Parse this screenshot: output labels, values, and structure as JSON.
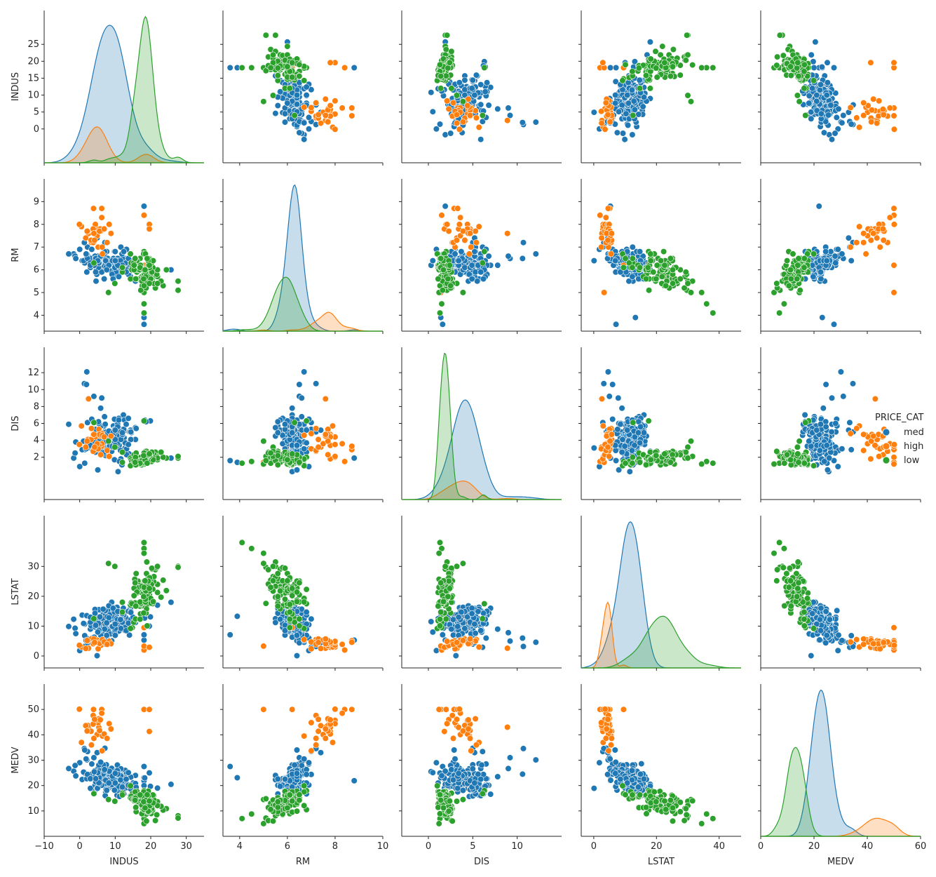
{
  "chart_data": {
    "type": "scatter",
    "kind": "pairplot",
    "variables": [
      "INDUS",
      "RM",
      "DIS",
      "LSTAT",
      "MEDV"
    ],
    "hue": "PRICE_CAT",
    "diagonal_type": "kde",
    "legend": {
      "title": "PRICE_CAT",
      "position": "right",
      "entries": [
        {
          "label": "med",
          "color": "#1f77b4"
        },
        {
          "label": "high",
          "color": "#ff7f0e"
        },
        {
          "label": "low",
          "color": "#2ca02c"
        }
      ]
    },
    "axes": {
      "INDUS": {
        "lim": [
          -10,
          35
        ],
        "ticks": [
          -10,
          0,
          10,
          20,
          30
        ],
        "diag_ticks": [
          0,
          5,
          10,
          15,
          20,
          25
        ]
      },
      "RM": {
        "lim": [
          3.3,
          10
        ],
        "ticks": [
          4,
          6,
          8,
          10
        ],
        "diag_ticks": [
          4,
          5,
          6,
          7,
          8,
          9
        ]
      },
      "DIS": {
        "lim": [
          -3,
          15
        ],
        "ticks": [
          0,
          5,
          10
        ],
        "diag_ticks": [
          2,
          4,
          6,
          8,
          10,
          12
        ]
      },
      "LSTAT": {
        "lim": [
          -4,
          47
        ],
        "ticks": [
          0,
          20,
          40
        ],
        "diag_ticks": [
          0,
          10,
          20,
          30
        ]
      },
      "MEDV": {
        "lim": [
          0,
          60
        ],
        "ticks": [
          0,
          20,
          40,
          60
        ],
        "diag_ticks": [
          10,
          20,
          30,
          40,
          50
        ]
      }
    },
    "series": [
      {
        "name": "med",
        "color": "#1f77b4",
        "cluster": {
          "INDUS": [
            8.5,
            5.5
          ],
          "RM": [
            6.3,
            0.45
          ],
          "DIS": [
            4.2,
            1.9
          ],
          "LSTAT": [
            11.5,
            4.5
          ],
          "MEDV": [
            22.5,
            4.5
          ]
        },
        "points": [
          {
            "INDUS": 2.3,
            "RM": 6.6,
            "DIS": 4.1,
            "LSTAT": 5.0,
            "MEDV": 24.0
          },
          {
            "INDUS": 7.1,
            "RM": 6.4,
            "DIS": 5.0,
            "LSTAT": 9.1,
            "MEDV": 21.6
          },
          {
            "INDUS": 7.1,
            "RM": 7.2,
            "DIS": 5.0,
            "LSTAT": 4.0,
            "MEDV": 34.7
          },
          {
            "INDUS": 2.2,
            "RM": 7.0,
            "DIS": 6.1,
            "LSTAT": 2.9,
            "MEDV": 33.4
          },
          {
            "INDUS": 18.1,
            "RM": 8.8,
            "DIS": 1.9,
            "LSTAT": 5.3,
            "MEDV": 21.9
          },
          {
            "INDUS": 18.1,
            "RM": 3.6,
            "DIS": 1.6,
            "LSTAT": 7.1,
            "MEDV": 27.5
          },
          {
            "INDUS": 18.1,
            "RM": 3.9,
            "DIS": 1.4,
            "LSTAT": 13.3,
            "MEDV": 23.1
          },
          {
            "INDUS": 2.0,
            "RM": 6.7,
            "DIS": 12.1,
            "LSTAT": 4.6,
            "MEDV": 30.1
          },
          {
            "INDUS": 1.3,
            "RM": 7.2,
            "DIS": 10.7,
            "LSTAT": 3.2,
            "MEDV": 34.6
          },
          {
            "INDUS": 4.0,
            "RM": 6.5,
            "DIS": 9.2,
            "LSTAT": 5.0,
            "MEDV": 31.0
          },
          {
            "INDUS": 6.2,
            "RM": 6.6,
            "DIS": 9.0,
            "LSTAT": 7.8,
            "MEDV": 26.7
          },
          {
            "INDUS": 8.1,
            "RM": 6.0,
            "DIS": 4.4,
            "LSTAT": 14.8,
            "MEDV": 18.9
          },
          {
            "INDUS": 9.9,
            "RM": 5.9,
            "DIS": 3.5,
            "LSTAT": 16.2,
            "MEDV": 19.4
          },
          {
            "INDUS": 10.6,
            "RM": 6.2,
            "DIS": 3.9,
            "LSTAT": 11.3,
            "MEDV": 22.0
          },
          {
            "INDUS": 13.9,
            "RM": 6.1,
            "DIS": 2.4,
            "LSTAT": 12.0,
            "MEDV": 19.6
          },
          {
            "INDUS": 15.0,
            "RM": 6.2,
            "DIS": 2.1,
            "LSTAT": 13.0,
            "MEDV": 21.0
          },
          {
            "INDUS": 21.9,
            "RM": 6.0,
            "DIS": 1.8,
            "LSTAT": 17.0,
            "MEDV": 19.0
          },
          {
            "INDUS": 25.7,
            "RM": 6.0,
            "DIS": 1.9,
            "LSTAT": 18.0,
            "MEDV": 20.5
          },
          {
            "INDUS": 19.6,
            "RM": 6.4,
            "DIS": 2.1,
            "LSTAT": 10.0,
            "MEDV": 25.0
          },
          {
            "INDUS": 3.4,
            "RM": 6.9,
            "DIS": 6.5,
            "LSTAT": 6.0,
            "MEDV": 28.5
          },
          {
            "INDUS": 5.9,
            "RM": 6.2,
            "DIS": 7.8,
            "LSTAT": 9.0,
            "MEDV": 23.5
          },
          {
            "INDUS": 12.8,
            "RM": 6.5,
            "DIS": 3.1,
            "LSTAT": 8.5,
            "MEDV": 26.0
          },
          {
            "INDUS": 4.9,
            "RM": 7.4,
            "DIS": 5.2,
            "LSTAT": 4.5,
            "MEDV": 33.0
          },
          {
            "INDUS": 9.0,
            "RM": 6.0,
            "DIS": 2.7,
            "LSTAT": 18.0,
            "MEDV": 19.8
          },
          {
            "INDUS": 18.1,
            "RM": 6.2,
            "DIS": 2.2,
            "LSTAT": 14.5,
            "MEDV": 20.0
          },
          {
            "INDUS": 6.9,
            "RM": 5.6,
            "DIS": 5.7,
            "LSTAT": 15.0,
            "MEDV": 20.1
          },
          {
            "INDUS": 1.9,
            "RM": 6.5,
            "DIS": 10.6,
            "LSTAT": 6.0,
            "MEDV": 24.5
          },
          {
            "INDUS": 6.4,
            "RM": 6.1,
            "DIS": 4.5,
            "LSTAT": 11.0,
            "MEDV": 22.3
          }
        ]
      },
      {
        "name": "high",
        "color": "#ff7f0e",
        "cluster": {
          "INDUS": [
            5.5,
            4.5
          ],
          "RM": [
            7.5,
            0.55
          ],
          "DIS": [
            3.8,
            1.9
          ],
          "LSTAT": [
            4.2,
            1.4
          ],
          "MEDV": [
            43.0,
            6.0
          ]
        },
        "points": [
          {
            "INDUS": 18.1,
            "RM": 8.4,
            "DIS": 1.5,
            "LSTAT": 2.0,
            "MEDV": 50.0
          },
          {
            "INDUS": 18.1,
            "RM": 5.0,
            "DIS": 1.4,
            "LSTAT": 3.3,
            "MEDV": 50.0
          },
          {
            "INDUS": 18.1,
            "RM": 6.2,
            "DIS": 1.2,
            "LSTAT": 9.5,
            "MEDV": 50.0
          },
          {
            "INDUS": 19.6,
            "RM": 8.0,
            "DIS": 2.0,
            "LSTAT": 3.0,
            "MEDV": 50.0
          },
          {
            "INDUS": 19.6,
            "RM": 7.8,
            "DIS": 1.8,
            "LSTAT": 2.9,
            "MEDV": 41.3
          },
          {
            "INDUS": 3.9,
            "RM": 8.7,
            "DIS": 2.9,
            "LSTAT": 5.1,
            "MEDV": 50.0
          },
          {
            "INDUS": 6.2,
            "RM": 8.7,
            "DIS": 3.3,
            "LSTAT": 4.6,
            "MEDV": 50.0
          },
          {
            "INDUS": 0.5,
            "RM": 7.9,
            "DIS": 5.7,
            "LSTAT": 3.0,
            "MEDV": 37.0
          },
          {
            "INDUS": 2.5,
            "RM": 7.6,
            "DIS": 8.9,
            "LSTAT": 2.6,
            "MEDV": 43.0
          },
          {
            "INDUS": 6.2,
            "RM": 8.3,
            "DIS": 3.6,
            "LSTAT": 3.9,
            "MEDV": 48.5
          },
          {
            "INDUS": 3.3,
            "RM": 7.2,
            "DIS": 5.4,
            "LSTAT": 5.5,
            "MEDV": 36.0
          },
          {
            "INDUS": 5.9,
            "RM": 7.7,
            "DIS": 2.3,
            "LSTAT": 3.5,
            "MEDV": 46.0
          }
        ]
      },
      {
        "name": "low",
        "color": "#2ca02c",
        "cluster": {
          "INDUS": [
            18.5,
            3.0
          ],
          "RM": [
            5.9,
            0.55
          ],
          "DIS": [
            1.9,
            0.5
          ],
          "LSTAT": [
            21.0,
            6.0
          ],
          "MEDV": [
            13.0,
            3.5
          ]
        },
        "points": [
          {
            "INDUS": 18.1,
            "RM": 4.1,
            "DIS": 1.3,
            "LSTAT": 38.0,
            "MEDV": 7.0
          },
          {
            "INDUS": 18.1,
            "RM": 4.5,
            "DIS": 1.5,
            "LSTAT": 36.0,
            "MEDV": 8.8
          },
          {
            "INDUS": 18.1,
            "RM": 5.0,
            "DIS": 1.2,
            "LSTAT": 34.4,
            "MEDV": 5.0
          },
          {
            "INDUS": 27.7,
            "RM": 5.5,
            "DIS": 1.9,
            "LSTAT": 30.0,
            "MEDV": 8.1
          },
          {
            "INDUS": 27.7,
            "RM": 5.1,
            "DIS": 2.1,
            "LSTAT": 29.7,
            "MEDV": 7.2
          },
          {
            "INDUS": 21.9,
            "RM": 5.7,
            "DIS": 1.7,
            "LSTAT": 24.0,
            "MEDV": 12.0
          },
          {
            "INDUS": 8.1,
            "RM": 5.0,
            "DIS": 3.9,
            "LSTAT": 31.0,
            "MEDV": 14.5
          },
          {
            "INDUS": 9.9,
            "RM": 5.4,
            "DIS": 3.2,
            "LSTAT": 30.0,
            "MEDV": 13.8
          },
          {
            "INDUS": 12.0,
            "RM": 5.9,
            "DIS": 2.6,
            "LSTAT": 18.0,
            "MEDV": 17.0
          },
          {
            "INDUS": 18.1,
            "RM": 6.8,
            "DIS": 6.3,
            "LSTAT": 17.5,
            "MEDV": 18.0
          },
          {
            "INDUS": 4.0,
            "RM": 6.3,
            "DIS": 6.1,
            "LSTAT": 12.5,
            "MEDV": 16.8
          },
          {
            "INDUS": 19.6,
            "RM": 6.5,
            "DIS": 1.6,
            "LSTAT": 20.5,
            "MEDV": 15.0
          }
        ]
      }
    ]
  }
}
